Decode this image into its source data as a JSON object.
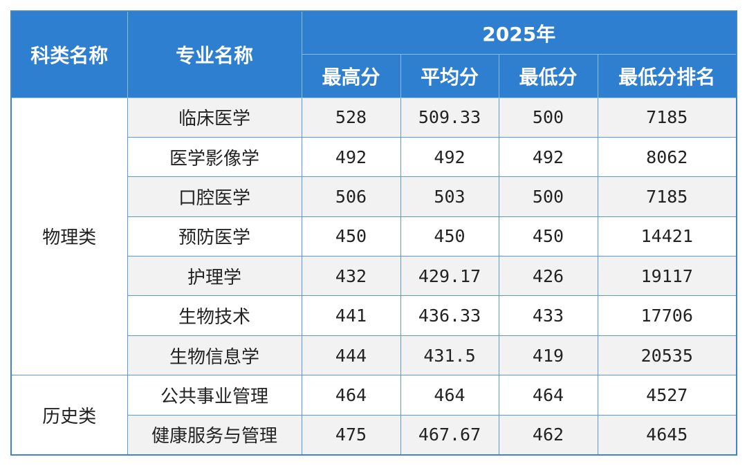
{
  "table": {
    "header": {
      "category": "科类名称",
      "major": "专业名称",
      "year": "2025年",
      "columns": [
        "最高分",
        "平均分",
        "最低分",
        "最低分排名"
      ]
    },
    "groups": [
      {
        "category": "物理类",
        "rows": [
          [
            "临床医学",
            "528",
            "509.33",
            "500",
            "7185"
          ],
          [
            "医学影像学",
            "492",
            "492",
            "492",
            "8062"
          ],
          [
            "口腔医学",
            "506",
            "503",
            "500",
            "7185"
          ],
          [
            "预防医学",
            "450",
            "450",
            "450",
            "14421"
          ],
          [
            "护理学",
            "432",
            "429.17",
            "426",
            "19117"
          ],
          [
            "生物技术",
            "441",
            "436.33",
            "433",
            "17706"
          ],
          [
            "生物信息学",
            "444",
            "431.5",
            "419",
            "20535"
          ]
        ]
      },
      {
        "category": "历史类",
        "rows": [
          [
            "公共事业管理",
            "464",
            "464",
            "464",
            "4527"
          ],
          [
            "健康服务与管理",
            "475",
            "467.67",
            "462",
            "4645"
          ]
        ]
      }
    ]
  }
}
